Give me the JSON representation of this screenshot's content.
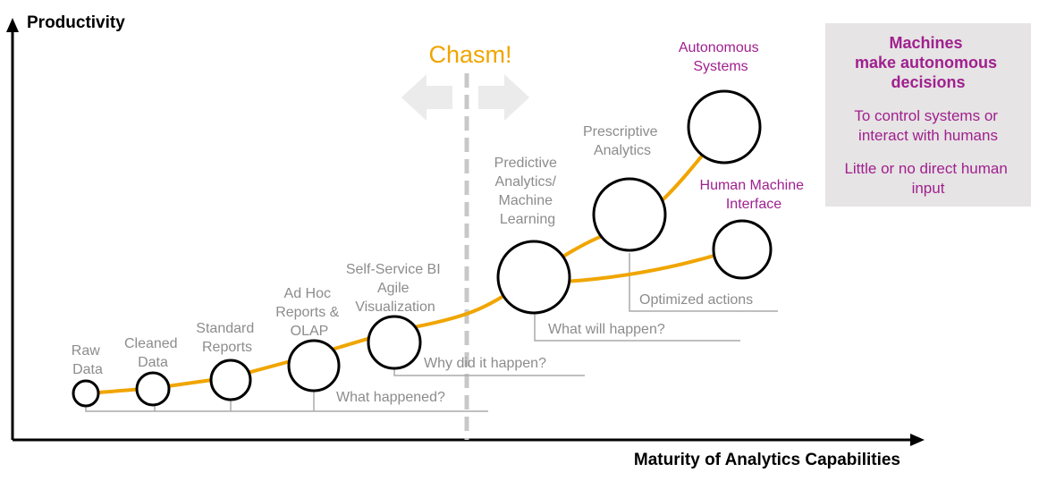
{
  "axes": {
    "y_title": "Productivity",
    "x_title": "Maturity of Analytics  Capabilities"
  },
  "chasm": {
    "label": "Chasm!"
  },
  "stages": [
    {
      "id": "raw-data",
      "lines": [
        "Raw",
        "Data"
      ]
    },
    {
      "id": "cleaned-data",
      "lines": [
        "Cleaned",
        "Data"
      ]
    },
    {
      "id": "standard-reports",
      "lines": [
        "Standard",
        "Reports"
      ]
    },
    {
      "id": "ad-hoc",
      "lines": [
        "Ad Hoc",
        "Reports &",
        "OLAP"
      ]
    },
    {
      "id": "self-service",
      "lines": [
        "Self-Service  BI",
        "Agile",
        "Visualization"
      ]
    },
    {
      "id": "predictive",
      "lines": [
        "Predictive",
        "Analytics/",
        "Machine",
        "Learning"
      ]
    },
    {
      "id": "prescriptive",
      "lines": [
        "Prescriptive",
        "Analytics"
      ]
    },
    {
      "id": "autonomous",
      "lines": [
        "Autonomous",
        "Systems"
      ]
    },
    {
      "id": "human-machine",
      "lines": [
        "Human Machine",
        "Interface"
      ]
    }
  ],
  "questions": {
    "what_happened": "What happened?",
    "why": "Why did it happen?",
    "what_will": "What will happen?",
    "optimized": "Optimized actions"
  },
  "panel": {
    "title_lines": [
      "Machines",
      "make autonomous",
      "decisions"
    ],
    "line2": [
      "To control systems or",
      "interact with humans"
    ],
    "line3": [
      "Little or no direct human",
      "input"
    ]
  },
  "colors": {
    "curve": "#f0a500",
    "accent": "#a0208f",
    "gray_text": "#8c8c8c",
    "panel_bg": "#e6e4e4"
  }
}
